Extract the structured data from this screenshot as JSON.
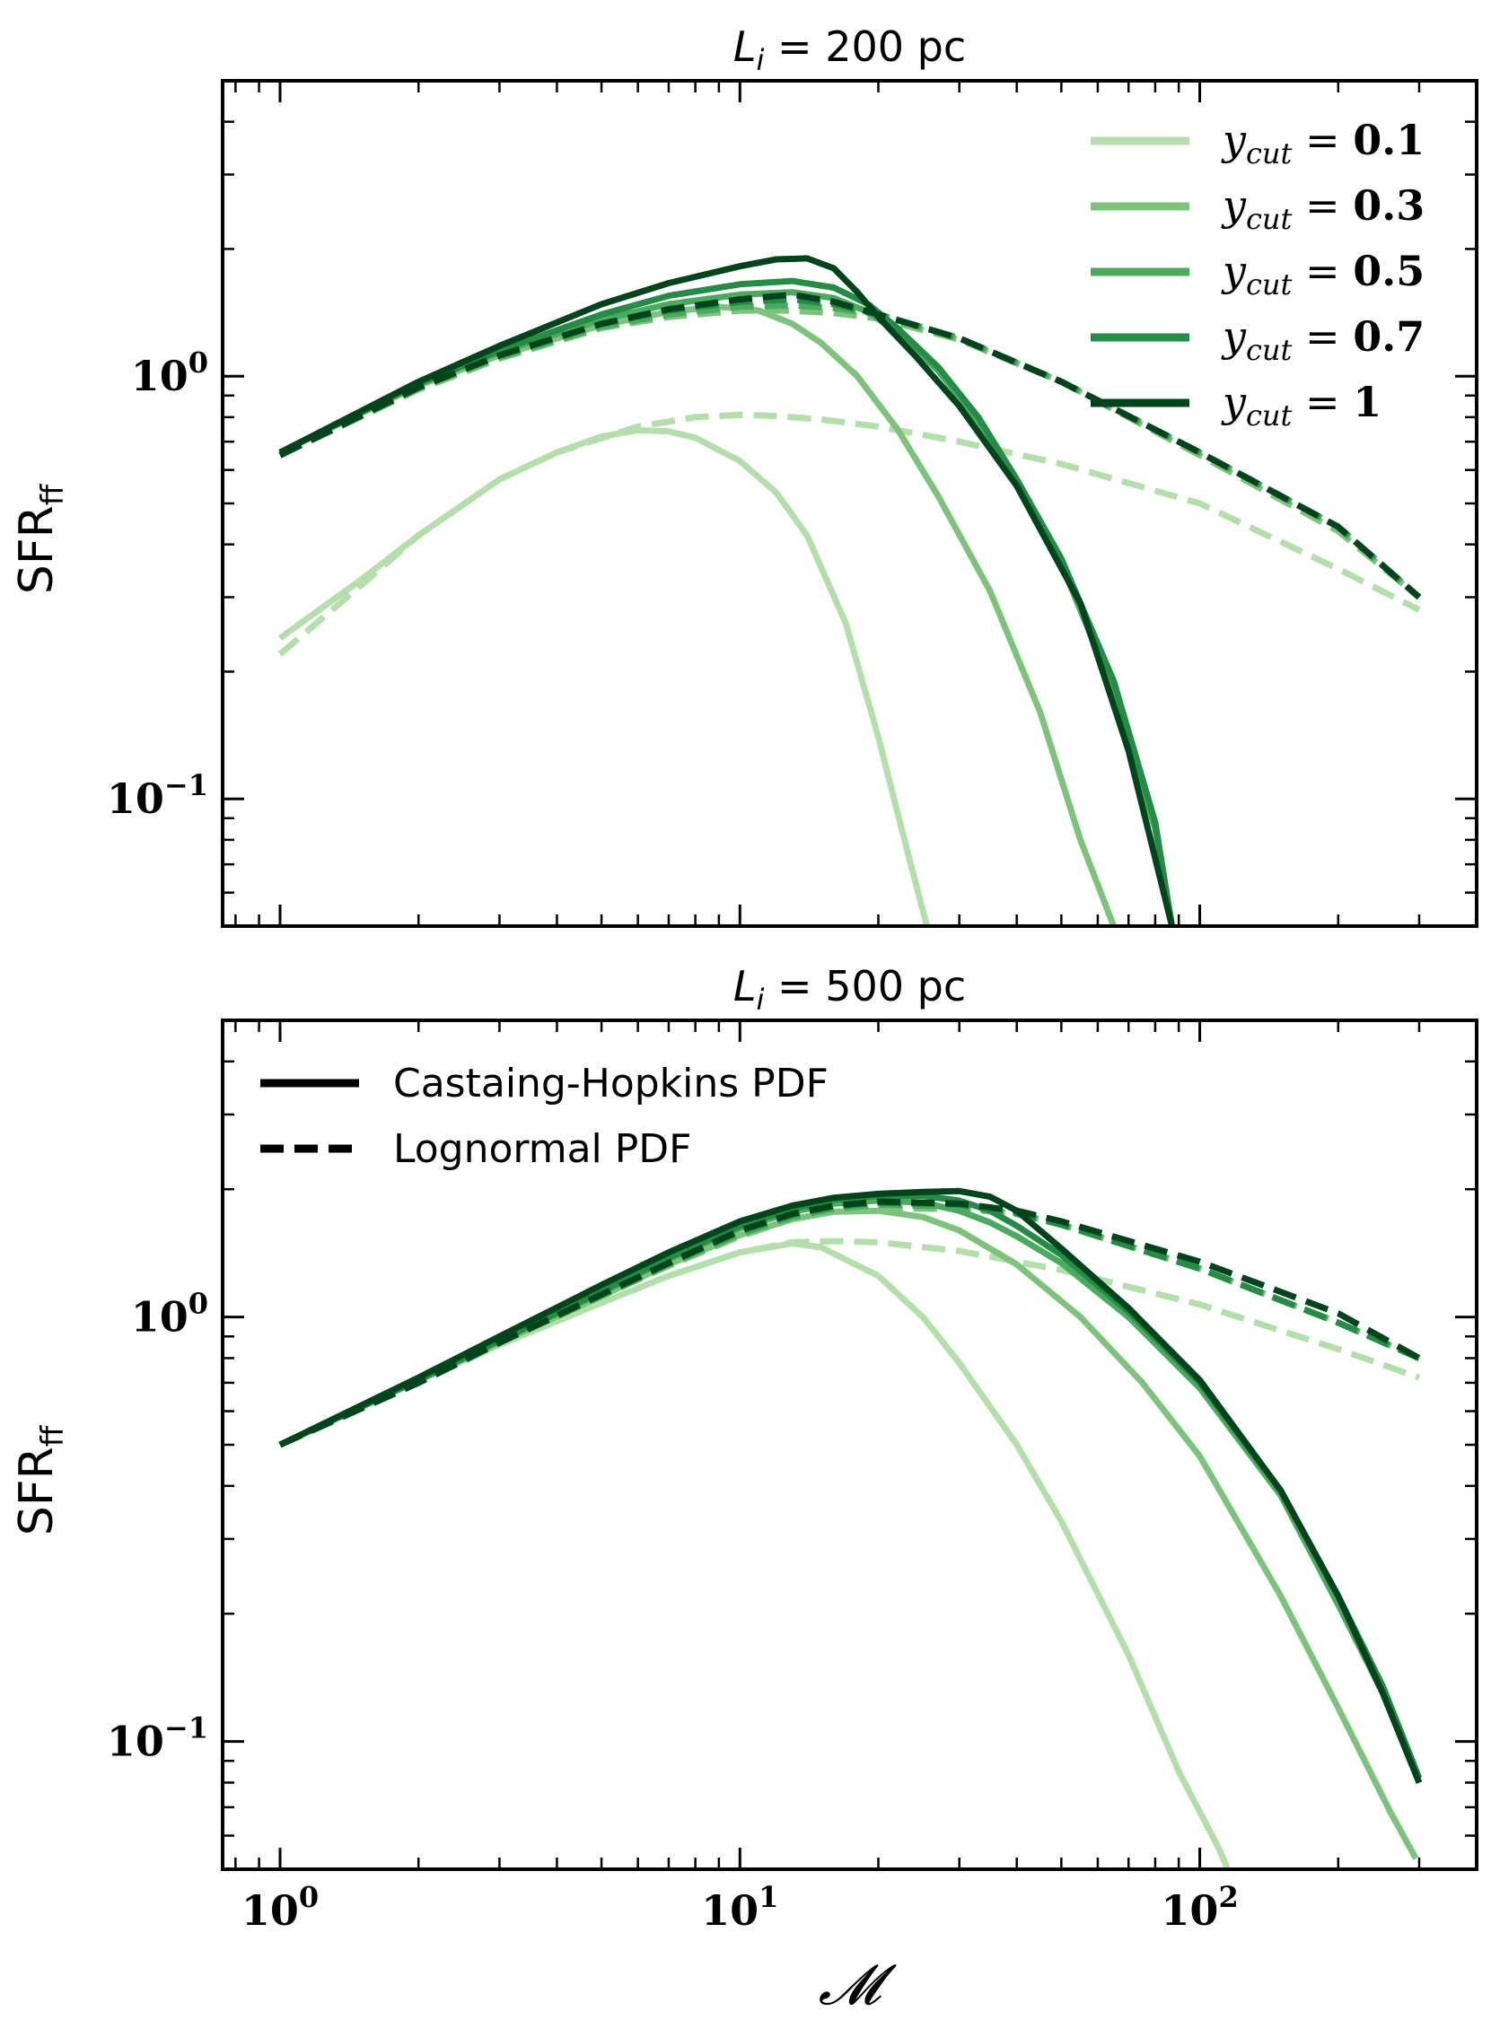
{
  "chart_data": [
    {
      "type": "line",
      "title": "L_i = 200 pc",
      "title_parts": {
        "symbol": "L",
        "sub": "i",
        "rest": " = 200 pc"
      },
      "xlabel": "",
      "ylabel": "SFR_ff",
      "ylabel_parts": {
        "main": "SFR",
        "sub": "ff"
      },
      "xscale": "log",
      "yscale": "log",
      "xlim": [
        0.75,
        400
      ],
      "ylim": [
        0.05,
        5.0
      ],
      "y_tick_labels": [
        {
          "value": 1,
          "base": "10",
          "exp": "0"
        },
        {
          "value": 0.1,
          "base": "10",
          "exp": "−1"
        }
      ],
      "x_tick_labels": [],
      "legend": {
        "position": "top-right",
        "entries": [
          {
            "prefix": "y",
            "sub": "cut",
            "eq": " = ",
            "value": "0.1",
            "color": "#b2dfaa"
          },
          {
            "prefix": "y",
            "sub": "cut",
            "eq": " = ",
            "value": "0.3",
            "color": "#7cc47c"
          },
          {
            "prefix": "y",
            "sub": "cut",
            "eq": " = ",
            "value": "0.5",
            "color": "#4aaa5e"
          },
          {
            "prefix": "y",
            "sub": "cut",
            "eq": " = ",
            "value": "0.7",
            "color": "#238c45"
          },
          {
            "prefix": "y",
            "sub": "cut",
            "eq": " = ",
            "value": "1",
            "color": "#00441b"
          }
        ]
      },
      "series": [
        {
          "name": "y_cut = 0.1 Castaing-Hopkins PDF",
          "style": "solid",
          "color": "#b2dfaa",
          "x": [
            1,
            1.5,
            2,
            3,
            4,
            5,
            6,
            7,
            8,
            10,
            12,
            14,
            17,
            20,
            23,
            25.5
          ],
          "y": [
            0.24,
            0.33,
            0.42,
            0.57,
            0.66,
            0.72,
            0.745,
            0.74,
            0.715,
            0.63,
            0.53,
            0.42,
            0.26,
            0.14,
            0.077,
            0.05
          ]
        },
        {
          "name": "y_cut = 0.1 Lognormal PDF",
          "style": "dashed",
          "color": "#b2dfaa",
          "x": [
            1,
            1.5,
            2,
            3,
            4,
            6,
            8,
            10,
            12,
            15,
            20,
            30,
            50,
            100,
            200,
            300
          ],
          "y": [
            0.22,
            0.32,
            0.42,
            0.57,
            0.66,
            0.76,
            0.8,
            0.81,
            0.805,
            0.79,
            0.76,
            0.7,
            0.62,
            0.5,
            0.35,
            0.28
          ]
        },
        {
          "name": "y_cut = 0.3 Castaing-Hopkins PDF",
          "style": "solid",
          "color": "#7cc47c",
          "x": [
            1,
            2,
            3,
            5,
            7,
            9,
            11,
            13,
            15,
            18,
            22,
            27,
            35,
            45,
            55,
            65
          ],
          "y": [
            0.66,
            0.95,
            1.12,
            1.32,
            1.42,
            1.46,
            1.43,
            1.33,
            1.2,
            1.0,
            0.75,
            0.52,
            0.31,
            0.16,
            0.08,
            0.05
          ]
        },
        {
          "name": "y_cut = 0.3 Lognormal PDF",
          "style": "dashed",
          "color": "#7cc47c",
          "x": [
            1,
            2,
            3,
            5,
            7,
            10,
            13,
            16,
            20,
            30,
            50,
            100,
            200,
            300
          ],
          "y": [
            0.65,
            0.93,
            1.1,
            1.3,
            1.38,
            1.43,
            1.43,
            1.41,
            1.37,
            1.22,
            0.97,
            0.65,
            0.43,
            0.3
          ]
        },
        {
          "name": "y_cut = 0.5 Castaing-Hopkins PDF",
          "style": "solid",
          "color": "#4aaa5e",
          "x": [
            1,
            2,
            3,
            5,
            7,
            10,
            13,
            16,
            19,
            22,
            27,
            33,
            40,
            50,
            65,
            80,
            87
          ],
          "y": [
            0.66,
            0.96,
            1.14,
            1.36,
            1.48,
            1.56,
            1.58,
            1.53,
            1.42,
            1.27,
            1.03,
            0.78,
            0.55,
            0.36,
            0.18,
            0.085,
            0.05
          ]
        },
        {
          "name": "y_cut = 0.5 Lognormal PDF",
          "style": "dashed",
          "color": "#4aaa5e",
          "x": [
            1,
            2,
            3,
            5,
            7,
            10,
            13,
            16,
            20,
            30,
            50,
            100,
            200,
            300
          ],
          "y": [
            0.65,
            0.94,
            1.11,
            1.31,
            1.4,
            1.46,
            1.47,
            1.45,
            1.4,
            1.23,
            0.97,
            0.66,
            0.44,
            0.3
          ]
        },
        {
          "name": "y_cut = 0.7 Castaing-Hopkins PDF",
          "style": "solid",
          "color": "#238c45",
          "x": [
            1,
            2,
            3,
            5,
            7,
            10,
            13,
            16,
            19,
            22,
            27,
            33,
            40,
            50,
            65,
            80,
            87
          ],
          "y": [
            0.66,
            0.96,
            1.15,
            1.4,
            1.55,
            1.65,
            1.68,
            1.62,
            1.48,
            1.3,
            1.05,
            0.8,
            0.57,
            0.37,
            0.19,
            0.088,
            0.05
          ]
        },
        {
          "name": "y_cut = 0.7 Lognormal PDF",
          "style": "dashed",
          "color": "#238c45",
          "x": [
            1,
            2,
            3,
            5,
            7,
            10,
            13,
            16,
            20,
            30,
            50,
            100,
            200,
            300
          ],
          "y": [
            0.65,
            0.94,
            1.12,
            1.33,
            1.43,
            1.5,
            1.52,
            1.48,
            1.4,
            1.23,
            0.97,
            0.66,
            0.44,
            0.3
          ]
        },
        {
          "name": "y_cut = 1 Castaing-Hopkins PDF",
          "style": "solid",
          "color": "#00441b",
          "x": [
            1,
            2,
            3,
            5,
            7,
            10,
            12,
            14,
            16,
            18,
            20,
            24,
            30,
            40,
            55,
            70,
            87
          ],
          "y": [
            0.66,
            0.97,
            1.18,
            1.48,
            1.66,
            1.82,
            1.89,
            1.9,
            1.8,
            1.58,
            1.38,
            1.12,
            0.85,
            0.55,
            0.29,
            0.13,
            0.05
          ]
        },
        {
          "name": "y_cut = 1 Lognormal PDF",
          "style": "dashed",
          "color": "#00441b",
          "x": [
            1,
            2,
            3,
            5,
            7,
            10,
            13,
            16,
            20,
            30,
            50,
            100,
            200,
            300
          ],
          "y": [
            0.65,
            0.94,
            1.12,
            1.33,
            1.44,
            1.52,
            1.56,
            1.5,
            1.4,
            1.23,
            0.97,
            0.66,
            0.44,
            0.3
          ]
        }
      ]
    },
    {
      "type": "line",
      "title": "L_i = 500 pc",
      "title_parts": {
        "symbol": "L",
        "sub": "i",
        "rest": " = 500 pc"
      },
      "xlabel": "𝓜",
      "ylabel": "SFR_ff",
      "ylabel_parts": {
        "main": "SFR",
        "sub": "ff"
      },
      "xscale": "log",
      "yscale": "log",
      "xlim": [
        0.75,
        400
      ],
      "ylim": [
        0.05,
        5.0
      ],
      "y_tick_labels": [
        {
          "value": 1,
          "base": "10",
          "exp": "0"
        },
        {
          "value": 0.1,
          "base": "10",
          "exp": "−1"
        }
      ],
      "x_tick_labels": [
        {
          "value": 1,
          "base": "10",
          "exp": "0"
        },
        {
          "value": 10,
          "base": "10",
          "exp": "1"
        },
        {
          "value": 100,
          "base": "10",
          "exp": "2"
        }
      ],
      "legend": {
        "position": "top-left",
        "entries": [
          {
            "label": "Castaing-Hopkins PDF",
            "style": "solid",
            "color": "#000000"
          },
          {
            "label": "Lognormal PDF",
            "style": "dashed",
            "color": "#000000"
          }
        ]
      },
      "series": [
        {
          "name": "y_cut = 0.1 Castaing-Hopkins PDF",
          "style": "solid",
          "color": "#b2dfaa",
          "x": [
            1,
            2,
            3,
            5,
            7,
            10,
            13,
            15,
            20,
            25,
            30,
            40,
            50,
            70,
            90,
            110,
            115
          ],
          "y": [
            0.5,
            0.71,
            0.86,
            1.08,
            1.25,
            1.42,
            1.49,
            1.46,
            1.25,
            1.0,
            0.78,
            0.5,
            0.33,
            0.16,
            0.085,
            0.056,
            0.05
          ]
        },
        {
          "name": "y_cut = 0.1 Lognormal PDF",
          "style": "dashed",
          "color": "#b2dfaa",
          "x": [
            1,
            2,
            3,
            5,
            7,
            10,
            13,
            16,
            20,
            30,
            50,
            100,
            200,
            300
          ],
          "y": [
            0.5,
            0.7,
            0.86,
            1.08,
            1.25,
            1.42,
            1.5,
            1.51,
            1.5,
            1.43,
            1.29,
            1.07,
            0.84,
            0.72
          ]
        },
        {
          "name": "y_cut = 0.3 Castaing-Hopkins PDF",
          "style": "solid",
          "color": "#7cc47c",
          "x": [
            1,
            2,
            3,
            5,
            7,
            10,
            13,
            16,
            20,
            25,
            30,
            40,
            55,
            75,
            100,
            150,
            200,
            260,
            295
          ],
          "y": [
            0.5,
            0.71,
            0.87,
            1.12,
            1.33,
            1.56,
            1.7,
            1.77,
            1.78,
            1.72,
            1.6,
            1.33,
            1.0,
            0.7,
            0.47,
            0.22,
            0.12,
            0.068,
            0.053
          ]
        },
        {
          "name": "y_cut = 0.3 Lognormal PDF",
          "style": "dashed",
          "color": "#7cc47c",
          "x": [
            1,
            2,
            3,
            5,
            7,
            10,
            13,
            16,
            20,
            30,
            40,
            50,
            100,
            200,
            300
          ],
          "y": [
            0.5,
            0.7,
            0.87,
            1.12,
            1.32,
            1.55,
            1.7,
            1.77,
            1.8,
            1.8,
            1.75,
            1.65,
            1.3,
            0.97,
            0.8
          ]
        },
        {
          "name": "y_cut = 0.5 Castaing-Hopkins PDF",
          "style": "solid",
          "color": "#4aaa5e",
          "x": [
            1,
            2,
            3,
            5,
            7,
            10,
            13,
            16,
            20,
            25,
            30,
            35,
            40,
            50,
            70,
            100,
            150,
            200,
            250,
            300
          ],
          "y": [
            0.5,
            0.71,
            0.88,
            1.14,
            1.37,
            1.62,
            1.77,
            1.85,
            1.88,
            1.86,
            1.78,
            1.67,
            1.55,
            1.34,
            1.0,
            0.68,
            0.38,
            0.21,
            0.13,
            0.08
          ]
        },
        {
          "name": "y_cut = 0.5 Lognormal PDF",
          "style": "dashed",
          "color": "#4aaa5e",
          "x": [
            1,
            2,
            3,
            5,
            7,
            10,
            13,
            16,
            20,
            30,
            40,
            50,
            100,
            200,
            300
          ],
          "y": [
            0.5,
            0.7,
            0.87,
            1.12,
            1.33,
            1.57,
            1.72,
            1.8,
            1.84,
            1.82,
            1.75,
            1.65,
            1.3,
            0.97,
            0.8
          ]
        },
        {
          "name": "y_cut = 0.7 Castaing-Hopkins PDF",
          "style": "solid",
          "color": "#238c45",
          "x": [
            1,
            2,
            3,
            5,
            7,
            10,
            13,
            16,
            20,
            25,
            30,
            35,
            40,
            50,
            70,
            100,
            150,
            200,
            250,
            300
          ],
          "y": [
            0.5,
            0.71,
            0.88,
            1.15,
            1.38,
            1.64,
            1.8,
            1.89,
            1.93,
            1.93,
            1.88,
            1.78,
            1.64,
            1.4,
            1.03,
            0.7,
            0.39,
            0.22,
            0.135,
            0.082
          ]
        },
        {
          "name": "y_cut = 0.7 Lognormal PDF",
          "style": "dashed",
          "color": "#238c45",
          "x": [
            1,
            2,
            3,
            5,
            7,
            10,
            13,
            16,
            20,
            30,
            40,
            50,
            100,
            200,
            300
          ],
          "y": [
            0.5,
            0.7,
            0.87,
            1.13,
            1.34,
            1.59,
            1.74,
            1.82,
            1.86,
            1.84,
            1.76,
            1.65,
            1.3,
            0.97,
            0.8
          ]
        },
        {
          "name": "y_cut = 1 Castaing-Hopkins PDF",
          "style": "solid",
          "color": "#00441b",
          "x": [
            1,
            2,
            3,
            5,
            7,
            10,
            13,
            16,
            20,
            25,
            30,
            35,
            40,
            50,
            70,
            100,
            150,
            200,
            250,
            300
          ],
          "y": [
            0.5,
            0.72,
            0.9,
            1.19,
            1.42,
            1.68,
            1.83,
            1.91,
            1.95,
            1.97,
            1.98,
            1.92,
            1.78,
            1.45,
            1.05,
            0.71,
            0.39,
            0.22,
            0.13,
            0.08
          ]
        },
        {
          "name": "y_cut = 1 Lognormal PDF",
          "style": "dashed",
          "color": "#00441b",
          "x": [
            1,
            2,
            3,
            5,
            7,
            10,
            13,
            16,
            20,
            30,
            40,
            50,
            100,
            200,
            300
          ],
          "y": [
            0.5,
            0.7,
            0.87,
            1.13,
            1.34,
            1.6,
            1.75,
            1.83,
            1.87,
            1.85,
            1.78,
            1.68,
            1.35,
            1.02,
            0.8
          ]
        }
      ]
    }
  ]
}
